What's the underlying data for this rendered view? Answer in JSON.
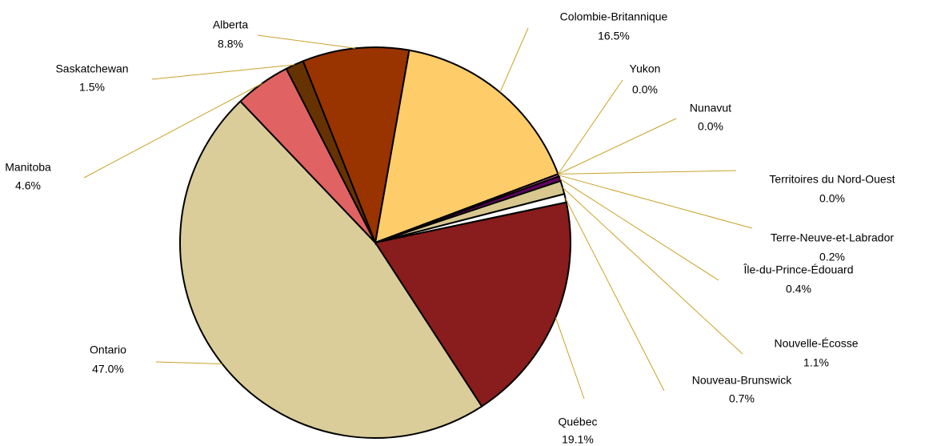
{
  "chart_data": {
    "type": "pie",
    "categories": [
      "Colombie-Britannique",
      "Yukon",
      "Nunavut",
      "Territoires du Nord-Ouest",
      "Terre-Neuve-et-Labrador",
      "Île-du-Prince-Édouard",
      "Nouvelle-Écosse",
      "Nouveau-Brunswick",
      "Québec",
      "Ontario",
      "Manitoba",
      "Saskatchewan",
      "Alberta"
    ],
    "values": [
      16.5,
      0.0,
      0.0,
      0.0,
      0.2,
      0.4,
      1.1,
      0.7,
      19.1,
      47.0,
      4.6,
      1.5,
      8.8
    ],
    "value_labels": [
      "16.5%",
      "0.0%",
      "0.0%",
      "0.0%",
      "0.2%",
      "0.4%",
      "1.1%",
      "0.7%",
      "19.1%",
      "47.0%",
      "4.6%",
      "1.5%",
      "8.8%"
    ],
    "colors": [
      "#ffcc6a",
      "#ffcc99",
      "#cc99cc",
      "#996699",
      "#cc6699",
      "#660066",
      "#d8c890",
      "#ffffff",
      "#891c1c",
      "#dacd99",
      "#e06262",
      "#663300",
      "#993300"
    ]
  }
}
